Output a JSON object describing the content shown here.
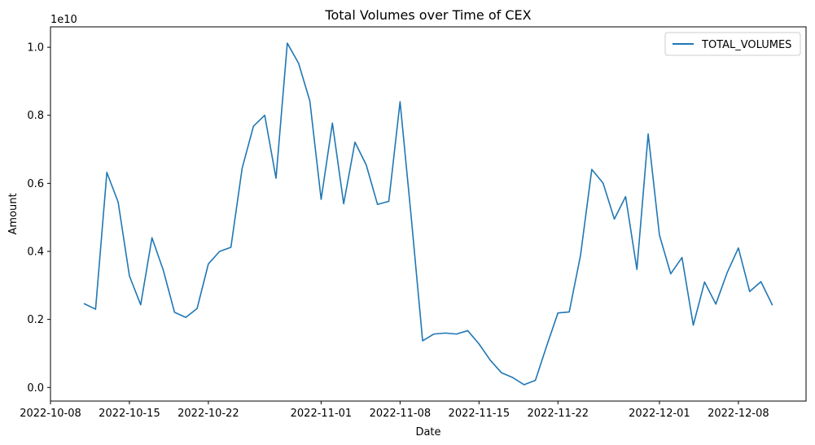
{
  "chart_data": {
    "type": "line",
    "title": "Total Volumes over Time of CEX",
    "xlabel": "Date",
    "ylabel": "Amount",
    "y_offset_text": "1e10",
    "y_scale": 10000000000,
    "xlim": [
      "2022-10-08",
      "2022-12-14"
    ],
    "ylim": [
      -0.04,
      1.06
    ],
    "x_ticks": [
      "2022-10-08",
      "2022-10-15",
      "2022-10-22",
      "2022-11-01",
      "2022-11-08",
      "2022-11-15",
      "2022-11-22",
      "2022-12-01",
      "2022-12-08"
    ],
    "y_ticks": [
      0.0,
      0.2,
      0.4,
      0.6,
      0.8,
      1.0
    ],
    "y_tick_labels": [
      "0.0",
      "0.2",
      "0.4",
      "0.6",
      "0.8",
      "1.0"
    ],
    "grid": false,
    "legend_position": "top-right",
    "series": [
      {
        "name": "TOTAL_VOLUMES",
        "color": "#1f77b4",
        "x": [
          "2022-10-11",
          "2022-10-12",
          "2022-10-13",
          "2022-10-14",
          "2022-10-15",
          "2022-10-16",
          "2022-10-17",
          "2022-10-18",
          "2022-10-19",
          "2022-10-20",
          "2022-10-21",
          "2022-10-22",
          "2022-10-23",
          "2022-10-24",
          "2022-10-25",
          "2022-10-26",
          "2022-10-27",
          "2022-10-28",
          "2022-10-29",
          "2022-10-30",
          "2022-10-31",
          "2022-11-01",
          "2022-11-02",
          "2022-11-03",
          "2022-11-04",
          "2022-11-05",
          "2022-11-06",
          "2022-11-07",
          "2022-11-08",
          "2022-11-09",
          "2022-11-10",
          "2022-11-11",
          "2022-11-12",
          "2022-11-13",
          "2022-11-14",
          "2022-11-15",
          "2022-11-16",
          "2022-11-17",
          "2022-11-18",
          "2022-11-19",
          "2022-11-20",
          "2022-11-21",
          "2022-11-22",
          "2022-11-23",
          "2022-11-24",
          "2022-11-25",
          "2022-11-26",
          "2022-11-27",
          "2022-11-28",
          "2022-11-29",
          "2022-11-30",
          "2022-12-01",
          "2022-12-02",
          "2022-12-03",
          "2022-12-04",
          "2022-12-05",
          "2022-12-06",
          "2022-12-07",
          "2022-12-08",
          "2022-12-09",
          "2022-12-10",
          "2022-12-11"
        ],
        "values": [
          0.246,
          0.23,
          0.632,
          0.545,
          0.328,
          0.243,
          0.44,
          0.345,
          0.221,
          0.206,
          0.232,
          0.363,
          0.4,
          0.412,
          0.645,
          0.768,
          0.8,
          0.615,
          1.012,
          0.953,
          0.842,
          0.553,
          0.777,
          0.54,
          0.721,
          0.654,
          0.538,
          0.547,
          0.84,
          0.497,
          0.137,
          0.157,
          0.16,
          0.157,
          0.167,
          0.128,
          0.08,
          0.043,
          0.029,
          0.008,
          0.021,
          0.122,
          0.219,
          0.222,
          0.388,
          0.641,
          0.601,
          0.495,
          0.561,
          0.347,
          0.745,
          0.448,
          0.334,
          0.382,
          0.183,
          0.31,
          0.245,
          0.337,
          0.41,
          0.282,
          0.311,
          0.243
        ]
      }
    ]
  }
}
